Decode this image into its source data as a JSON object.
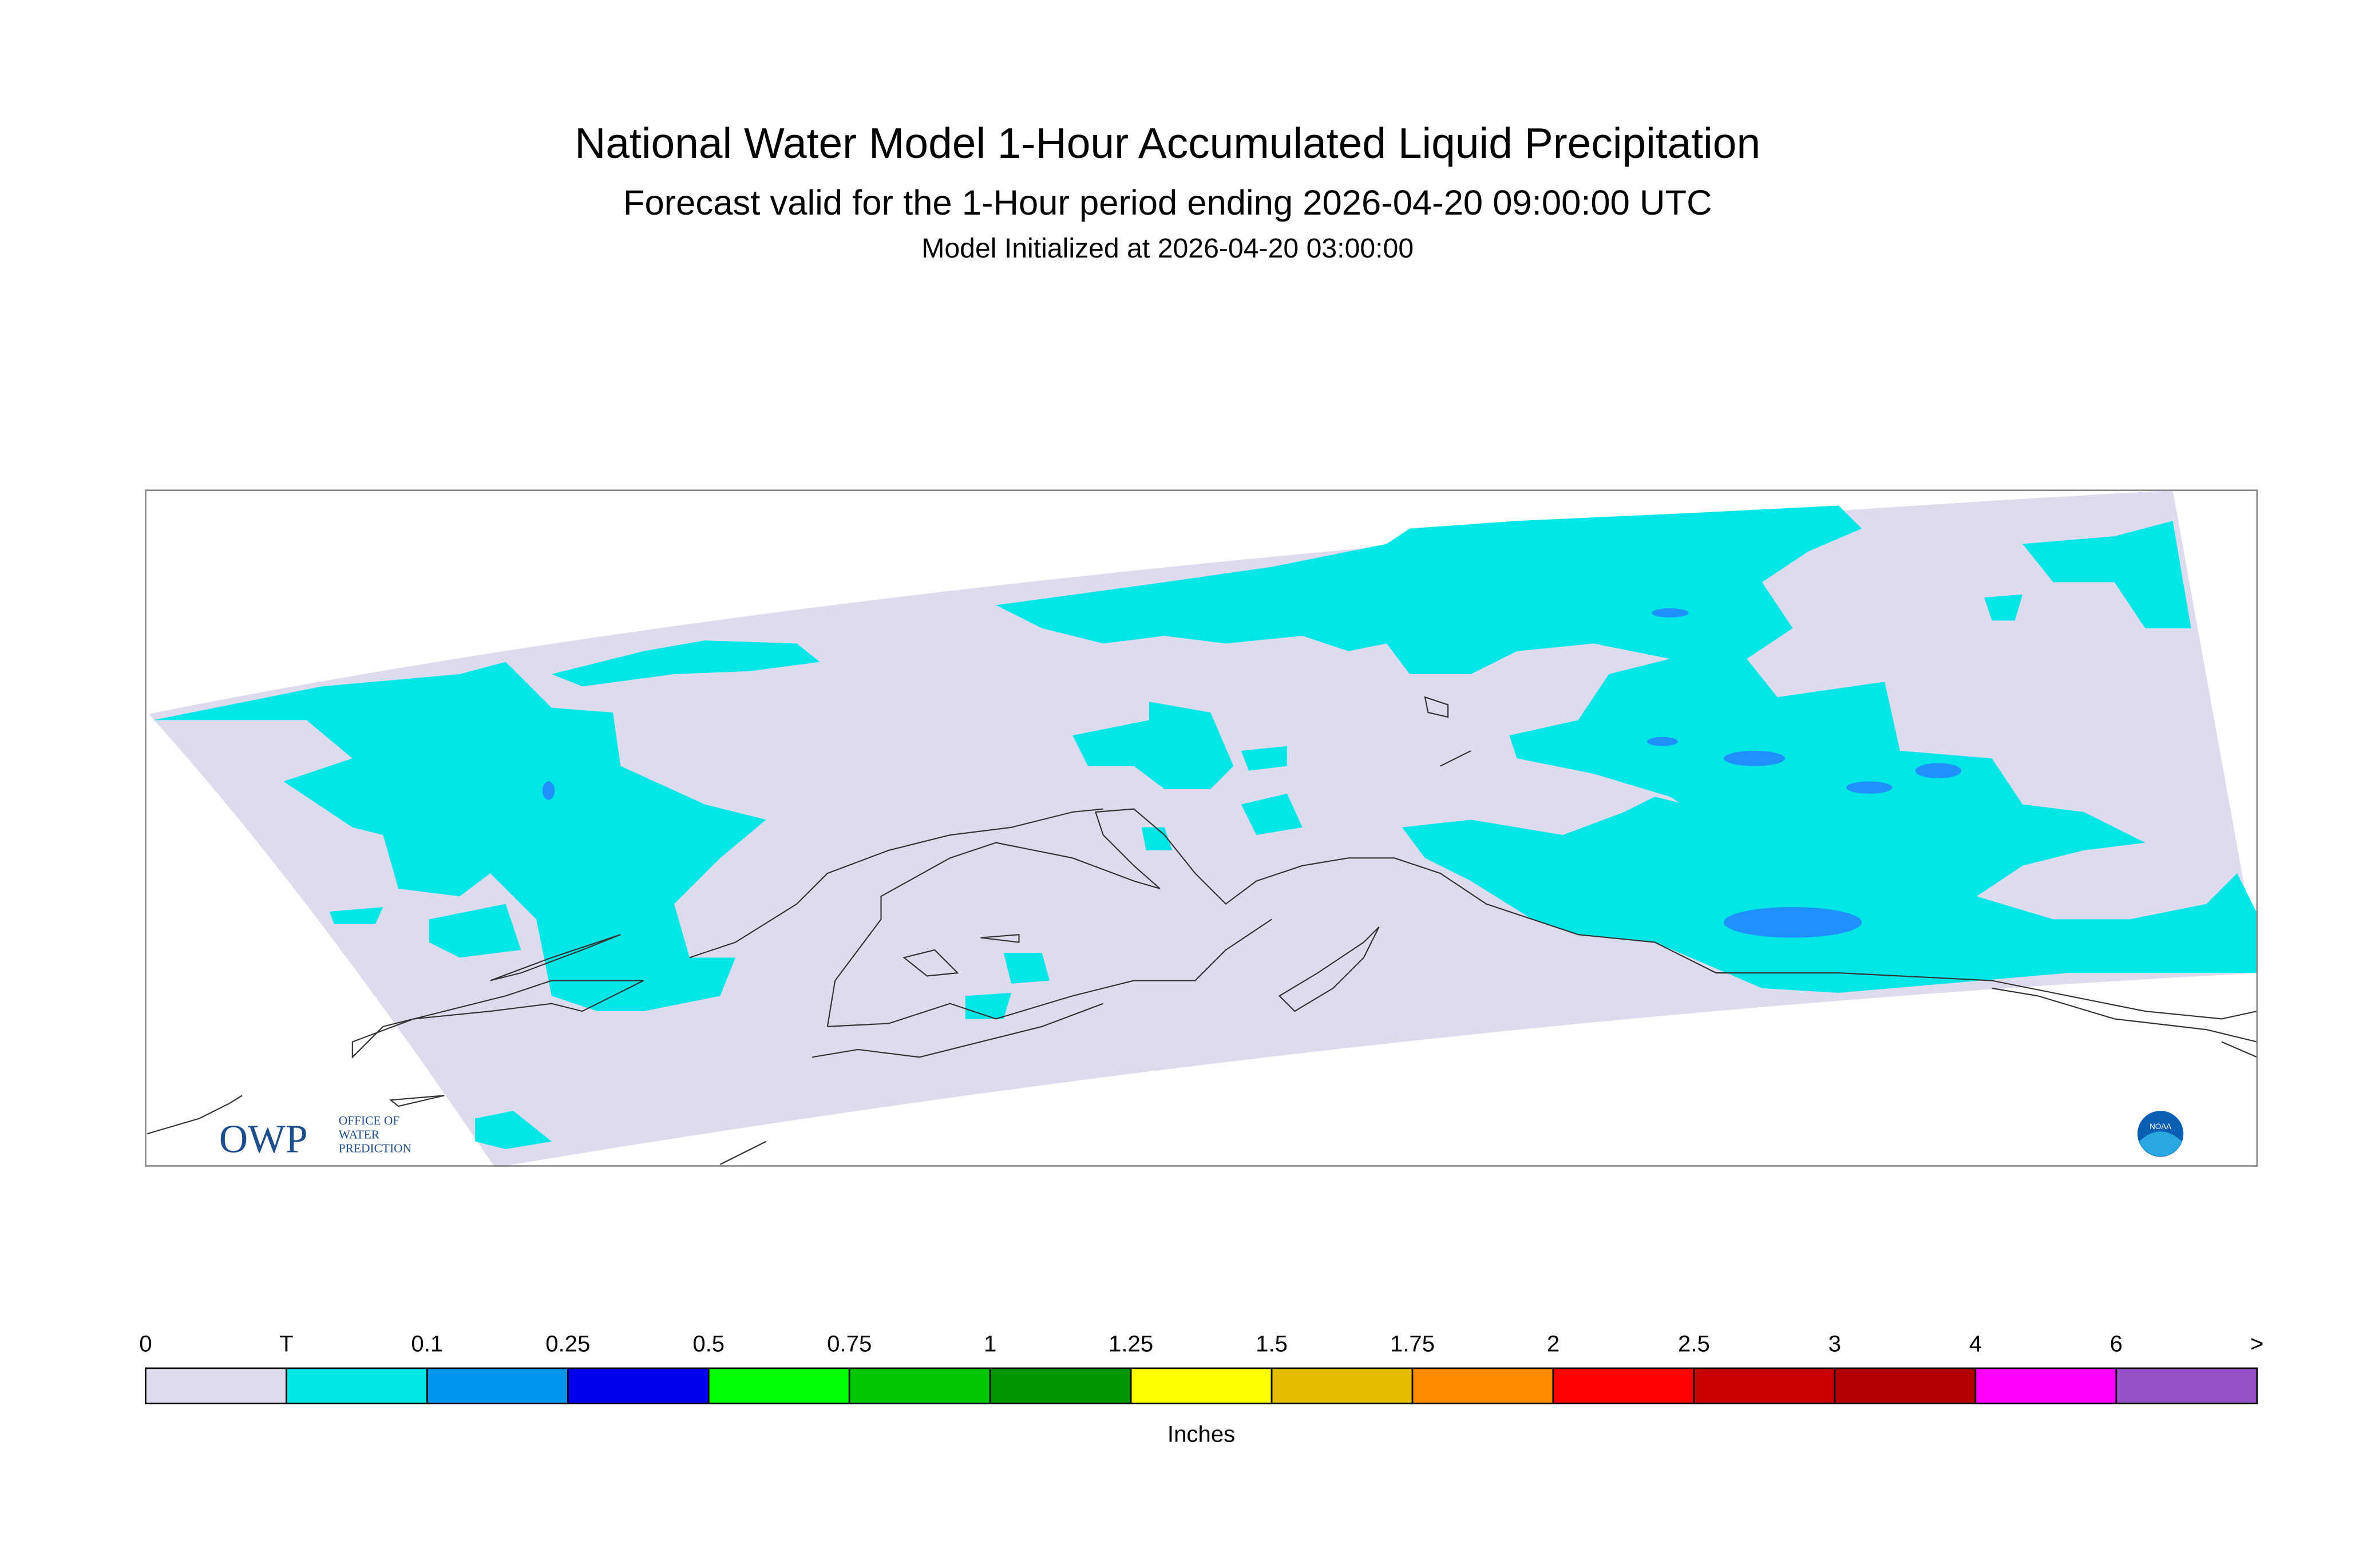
{
  "header": {
    "title": "National Water Model 1-Hour Accumulated Liquid Precipitation",
    "subtitle": "Forecast valid for the 1-Hour period ending 2026-04-20 09:00:00 UTC",
    "init": "Model Initialized at 2026-04-20 03:00:00"
  },
  "logos": {
    "owp": "OWP",
    "owp_lines": [
      "OFFICE OF",
      "WATER",
      "PREDICTION"
    ],
    "noaa": "NOAA"
  },
  "legend": {
    "labels": [
      "0",
      "T",
      "0.1",
      "0.25",
      "0.5",
      "0.75",
      "1",
      "1.25",
      "1.5",
      "1.75",
      "2",
      "2.5",
      "3",
      "4",
      "6",
      ">"
    ],
    "colors": [
      "#dcdcee",
      "#00e6e6",
      "#0096f0",
      "#0000f0",
      "#00ff00",
      "#00c800",
      "#009600",
      "#ffff00",
      "#e6be00",
      "#ff8c00",
      "#ff0000",
      "#c80000",
      "#b40000",
      "#ff00ff",
      "#9650c8"
    ],
    "units": "Inches"
  }
}
